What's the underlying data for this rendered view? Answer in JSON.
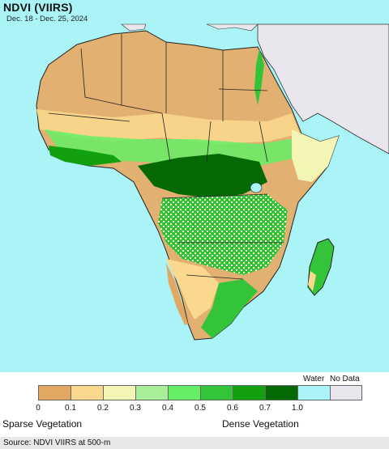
{
  "header": {
    "title": "NDVI (VIIRS)",
    "date_range": "Dec. 18 - Dec. 25, 2024"
  },
  "legend": {
    "classes": [
      {
        "label": "0",
        "color": "#e2a863"
      },
      {
        "label": "0.1",
        "color": "#fad88d"
      },
      {
        "label": "0.2",
        "color": "#f2f5b3"
      },
      {
        "label": "0.3",
        "color": "#a9ef9a"
      },
      {
        "label": "0.4",
        "color": "#66ef66"
      },
      {
        "label": "0.5",
        "color": "#34c43a"
      },
      {
        "label": "0.6",
        "color": "#10a010"
      },
      {
        "label": "0.7",
        "color": "#056a05"
      },
      {
        "label": "1.0",
        "color": null
      }
    ],
    "water_label": "Water",
    "water_color": "#aaf4f8",
    "nodata_label": "No Data",
    "nodata_color": "#eae6ee",
    "sparse_label": "Sparse Vegetation",
    "dense_label": "Dense Vegetation"
  },
  "source": "Source: NDVI VIIRS at 500-m",
  "colors": {
    "ocean": "#aaf4f8",
    "land_no_data": "#eae6ee",
    "borders": "#222222"
  }
}
